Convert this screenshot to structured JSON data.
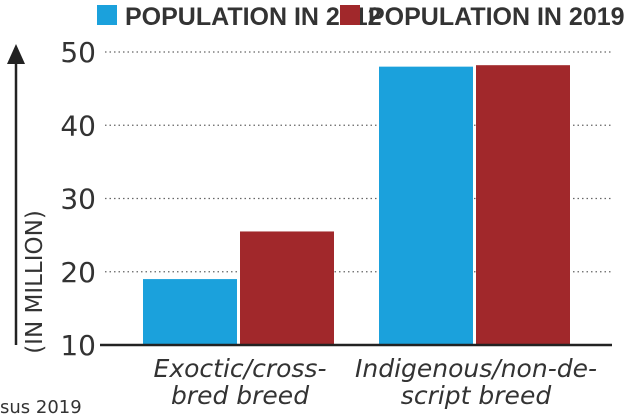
{
  "chart_data": {
    "type": "bar",
    "categories": [
      [
        "Exoctic/cross-",
        "bred breed"
      ],
      [
        "Indigenous/non-de-",
        "script breed"
      ]
    ],
    "series": [
      {
        "name": "POPULATION IN 2012",
        "color": "#1ba1dc",
        "values": [
          19,
          48
        ]
      },
      {
        "name": "POPULATION IN 2019",
        "color": "#a1282b",
        "values": [
          25.5,
          48.2
        ]
      }
    ],
    "ylabel": "(IN MILLION)",
    "ylim": [
      10,
      50
    ],
    "yticks": [
      10,
      20,
      30,
      40,
      50
    ],
    "grid": true,
    "legend": "top",
    "source": "sus 2019"
  }
}
